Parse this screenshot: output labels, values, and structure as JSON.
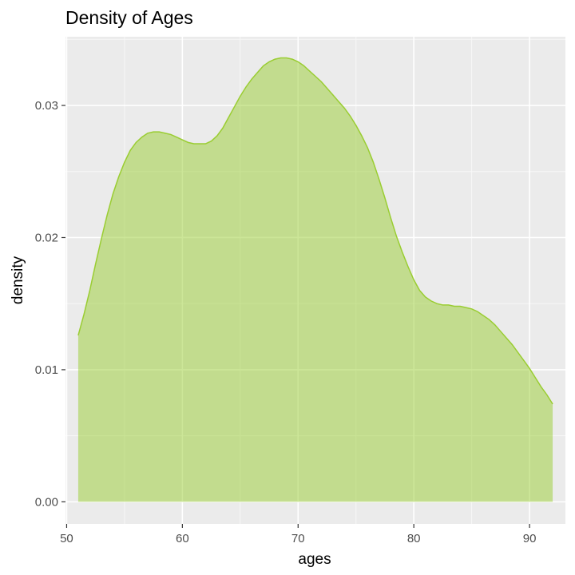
{
  "chart_data": {
    "type": "area",
    "title": "Density of Ages",
    "xlabel": "ages",
    "ylabel": "density",
    "xlim": [
      49.9,
      93.1
    ],
    "ylim": [
      -0.00167,
      0.0352
    ],
    "x_ticks": [
      50,
      60,
      70,
      80,
      90
    ],
    "x_tick_labels": [
      "50",
      "60",
      "70",
      "80",
      "90"
    ],
    "y_ticks": [
      0.0,
      0.01,
      0.02,
      0.03
    ],
    "y_tick_labels": [
      "0.00",
      "0.01",
      "0.02",
      "0.03"
    ],
    "grid": true,
    "colors": {
      "panel_background": "#ebebeb",
      "grid_major": "#ffffff",
      "fill": "#9acd32",
      "fill_alpha": 0.5,
      "line": "#9acd32"
    },
    "series": [
      {
        "x": [
          51.0,
          51.5,
          52.0,
          52.5,
          53.0,
          53.5,
          54.0,
          54.5,
          55.0,
          55.5,
          56.0,
          56.5,
          57.0,
          57.5,
          58.0,
          58.5,
          59.0,
          59.5,
          60.0,
          60.5,
          61.0,
          61.5,
          62.0,
          62.5,
          63.0,
          63.5,
          64.0,
          64.5,
          65.0,
          65.5,
          66.0,
          66.5,
          67.0,
          67.5,
          68.0,
          68.5,
          69.0,
          69.5,
          70.0,
          70.5,
          71.0,
          71.5,
          72.0,
          72.5,
          73.0,
          73.5,
          74.0,
          74.5,
          75.0,
          75.5,
          76.0,
          76.5,
          77.0,
          77.5,
          78.0,
          78.5,
          79.0,
          79.5,
          80.0,
          80.5,
          81.0,
          81.5,
          82.0,
          82.5,
          83.0,
          83.5,
          84.0,
          84.5,
          85.0,
          85.5,
          86.0,
          86.5,
          87.0,
          87.5,
          88.0,
          88.5,
          89.0,
          89.5,
          90.0,
          90.5,
          91.0,
          91.5,
          92.0
        ],
        "y": [
          0.0126,
          0.0142,
          0.016,
          0.018,
          0.0199,
          0.0217,
          0.0233,
          0.0246,
          0.0257,
          0.0266,
          0.0272,
          0.0276,
          0.0279,
          0.028,
          0.028,
          0.0279,
          0.0278,
          0.0276,
          0.0274,
          0.0272,
          0.0271,
          0.0271,
          0.0271,
          0.0273,
          0.0277,
          0.0283,
          0.0291,
          0.0299,
          0.0307,
          0.0314,
          0.032,
          0.0325,
          0.033,
          0.0333,
          0.0335,
          0.0336,
          0.0336,
          0.0335,
          0.0333,
          0.033,
          0.0326,
          0.0322,
          0.0318,
          0.0313,
          0.0308,
          0.0303,
          0.0298,
          0.0292,
          0.0285,
          0.0277,
          0.0268,
          0.0257,
          0.0244,
          0.023,
          0.0215,
          0.0201,
          0.0189,
          0.0178,
          0.0168,
          0.016,
          0.0155,
          0.0152,
          0.015,
          0.0149,
          0.0149,
          0.0148,
          0.0148,
          0.0147,
          0.0146,
          0.0144,
          0.0141,
          0.0138,
          0.0134,
          0.0129,
          0.0124,
          0.0119,
          0.0113,
          0.0107,
          0.0101,
          0.0094,
          0.0087,
          0.0081,
          0.0074
        ]
      }
    ]
  }
}
